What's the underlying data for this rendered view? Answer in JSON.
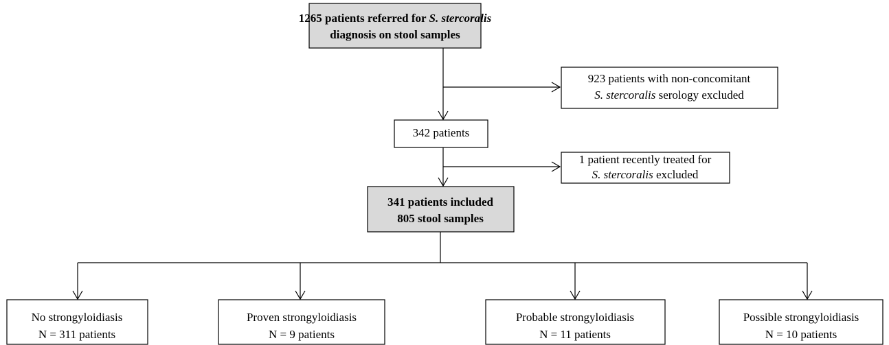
{
  "nodes": [
    {
      "lines": [
        [
          "1265 patients referred for ",
          "S. stercoralis"
        ],
        [
          "diagnosis on stool samples"
        ]
      ]
    },
    {
      "lines": [
        [
          "923 patients with non-concomitant"
        ],
        [
          "S. stercoralis",
          " serology excluded"
        ]
      ]
    },
    {
      "lines": [
        [
          "342 patients"
        ]
      ]
    },
    {
      "lines": [
        [
          "1 patient recently treated for"
        ],
        [
          "S. stercoralis",
          " excluded"
        ]
      ]
    },
    {
      "lines": [
        [
          "341 patients included"
        ],
        [
          "805 stool samples"
        ]
      ]
    },
    {
      "lines": [
        [
          "No strongyloidiasis"
        ],
        [
          "N = 311 patients"
        ]
      ]
    },
    {
      "lines": [
        [
          "Proven strongyloidiasis"
        ],
        [
          "N = 9 patients"
        ]
      ]
    },
    {
      "lines": [
        [
          "Probable strongyloidiasis"
        ],
        [
          "N = 11 patients"
        ]
      ]
    },
    {
      "lines": [
        [
          "Possible strongyloidiasis"
        ],
        [
          "N = 10 patients"
        ]
      ]
    }
  ]
}
